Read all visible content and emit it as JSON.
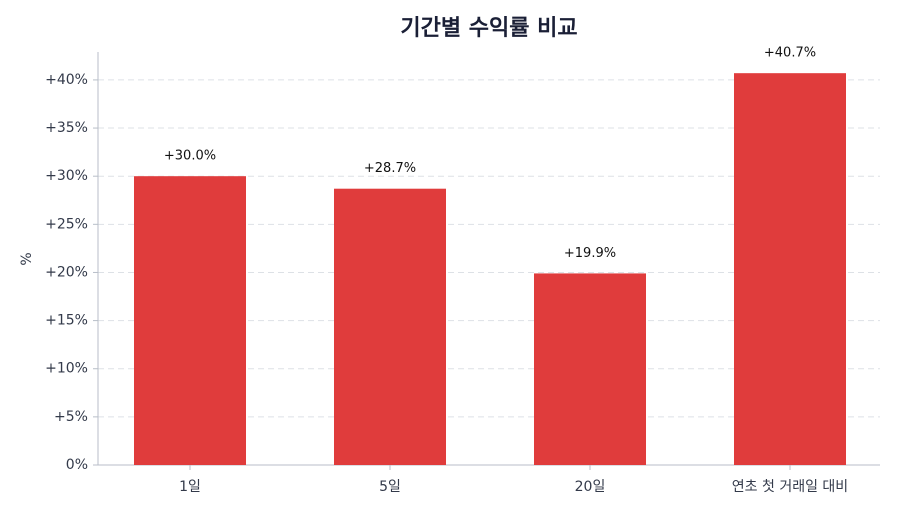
{
  "chart_data": {
    "type": "bar",
    "title": "기간별 수익률 비교",
    "y_label": "%",
    "categories": [
      "1일",
      "5일",
      "20일",
      "연초 첫 거래일 대비"
    ],
    "values": [
      30.0,
      28.7,
      19.9,
      40.7
    ],
    "value_labels": [
      "+30.0%",
      "+28.7%",
      "+19.9%",
      "+40.7%"
    ],
    "color": "#e03c3c",
    "ylim": [
      0,
      42.9
    ],
    "yticks": [
      {
        "value": 0,
        "label": "0%"
      },
      {
        "value": 5,
        "label": "+5%"
      },
      {
        "value": 10,
        "label": "+10%"
      },
      {
        "value": 15,
        "label": "+15%"
      },
      {
        "value": 20,
        "label": "+20%"
      },
      {
        "value": 25,
        "label": "+25%"
      },
      {
        "value": 30,
        "label": "+30%"
      },
      {
        "value": 35,
        "label": "+35%"
      },
      {
        "value": 40,
        "label": "+40%"
      }
    ],
    "grid": true
  }
}
